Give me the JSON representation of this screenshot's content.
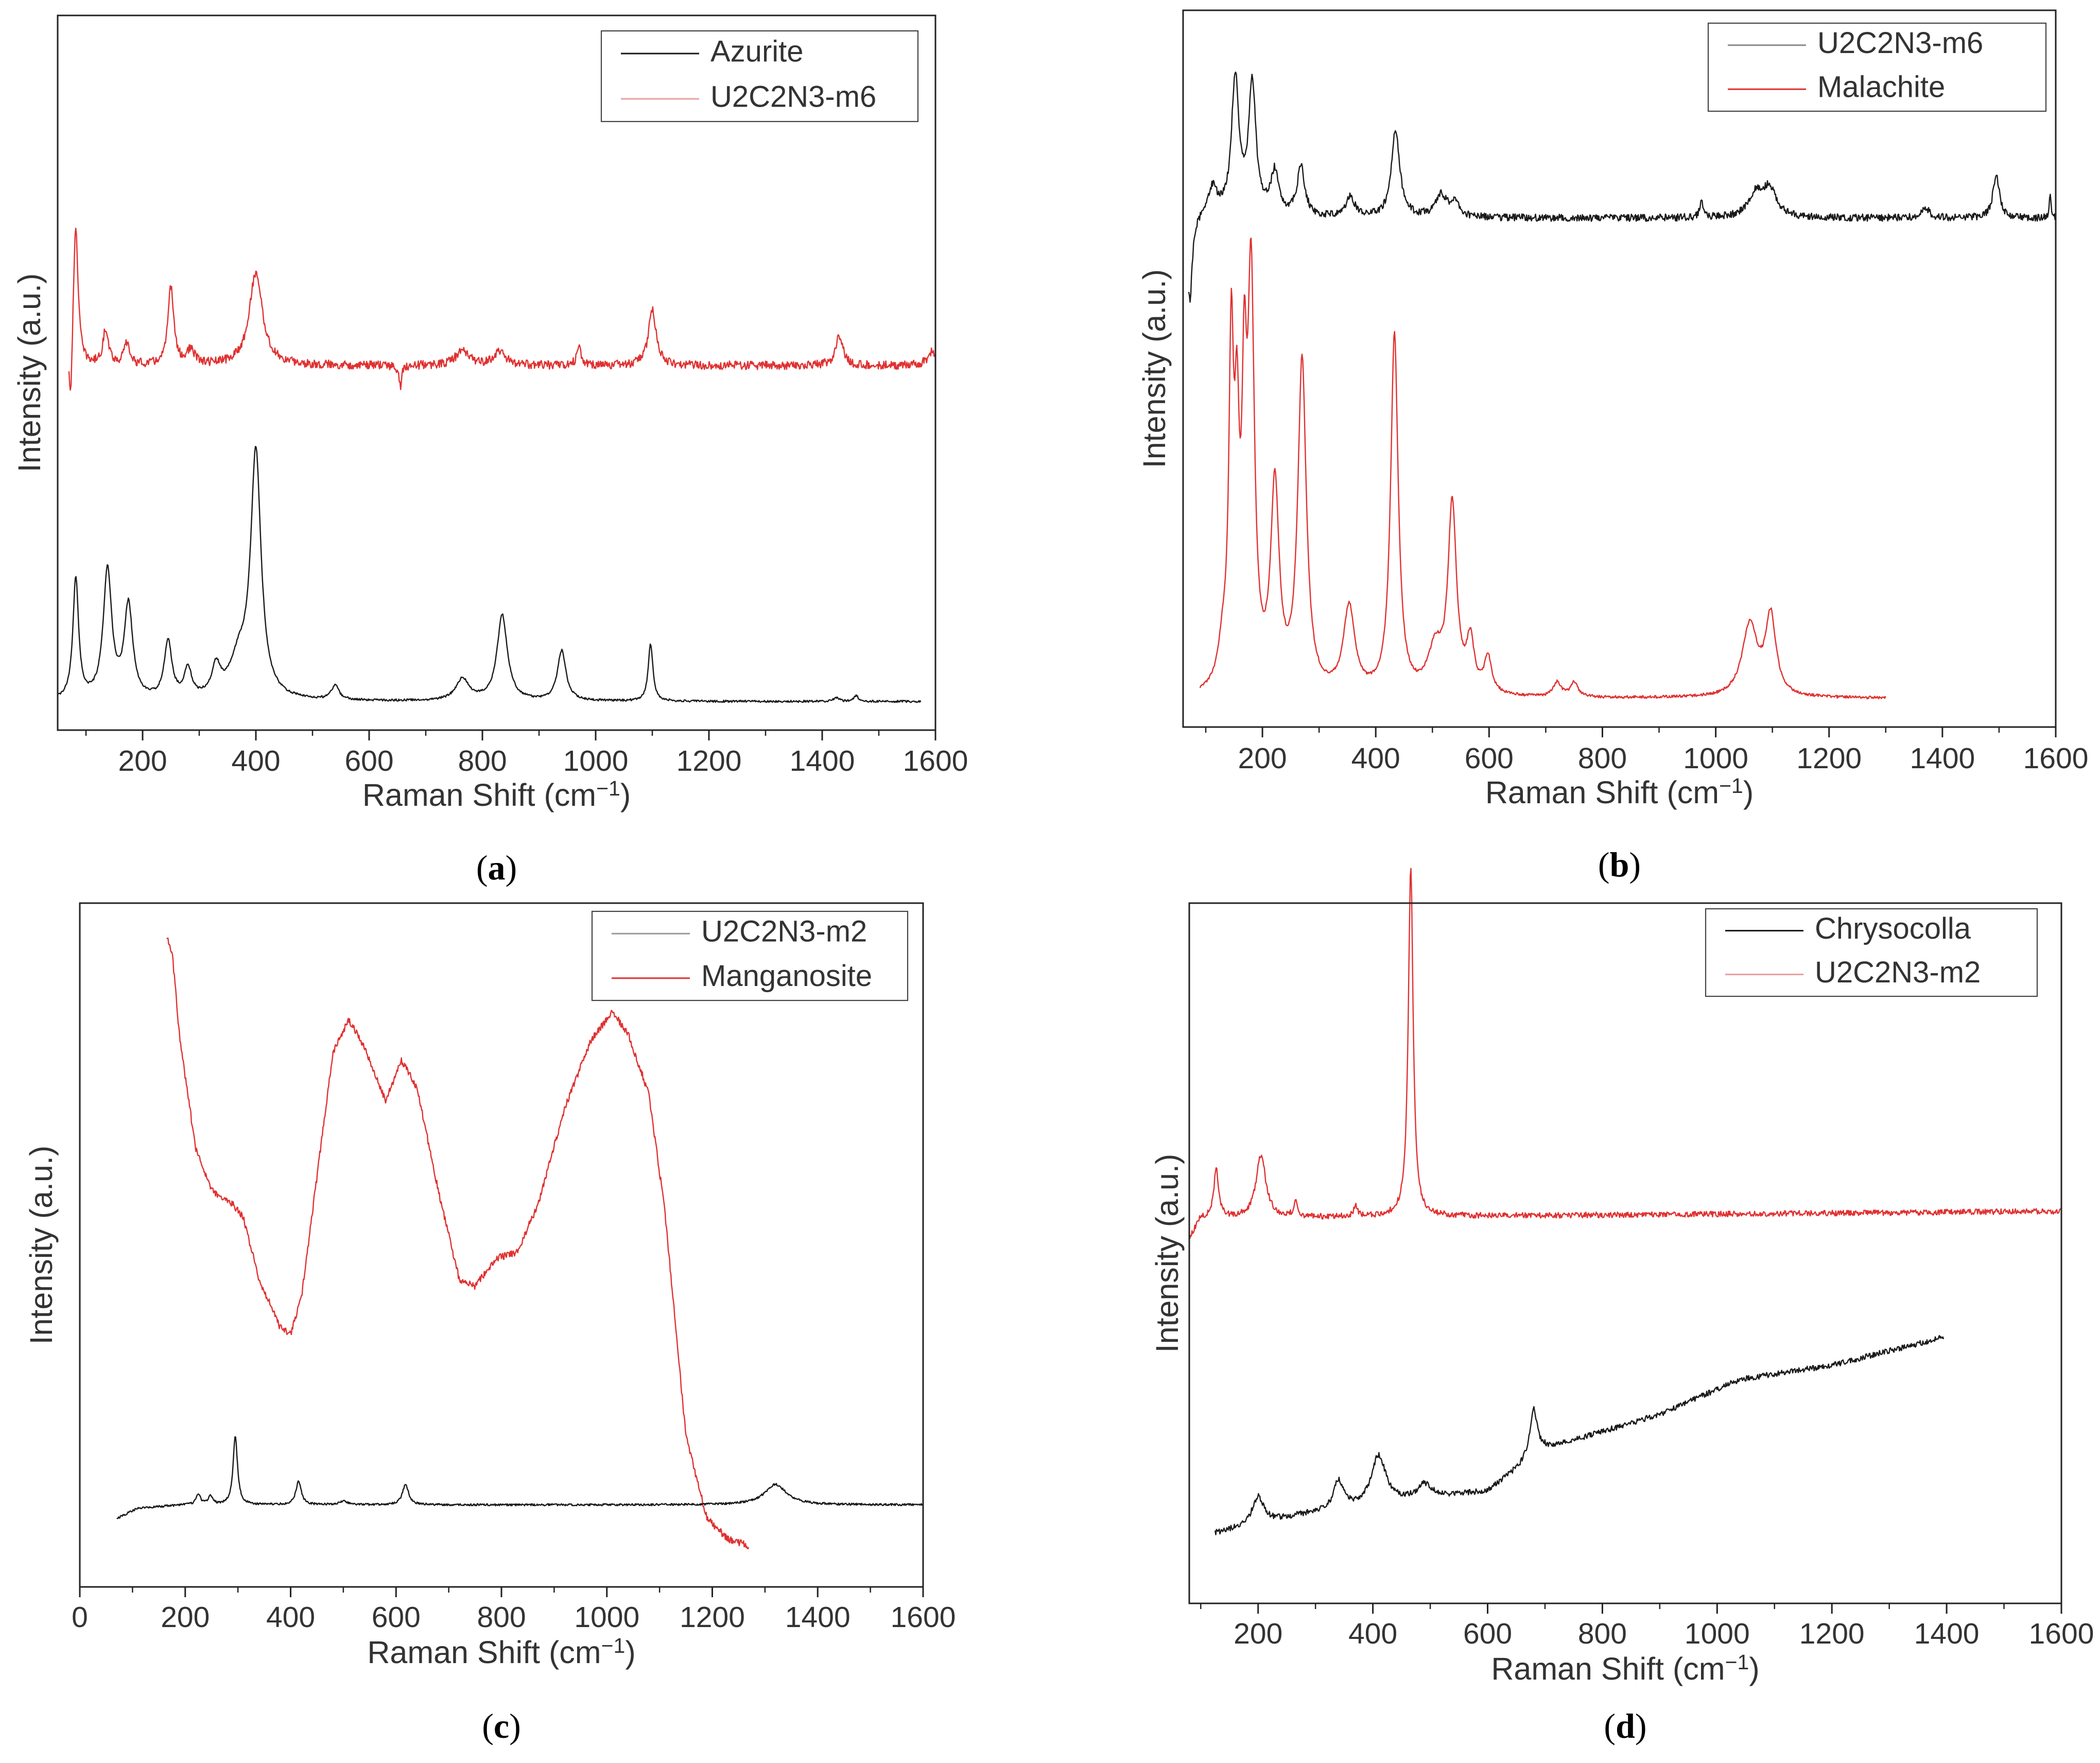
{
  "figure": {
    "panels": [
      "a",
      "b",
      "c",
      "d"
    ]
  },
  "colors": {
    "black": "#1a1a1a",
    "red": "#e03131",
    "axis": "#222222"
  },
  "chart_data": [
    {
      "id": "a",
      "type": "line",
      "caption_open": "(",
      "caption_letter": "a",
      "caption_close": ")",
      "xlabel_main": "Raman Shift (cm",
      "xlabel_sup": "−1",
      "xlabel_close": ")",
      "ylabel": "Intensity (a.u.)",
      "xlim": [
        50,
        1600
      ],
      "ylim": [
        0,
        1
      ],
      "xticks": [
        200,
        400,
        600,
        800,
        1000,
        1200,
        1400,
        1600
      ],
      "legend_position": "top-right",
      "legend": [
        {
          "label": "Azurite",
          "color": "#1a1a1a"
        },
        {
          "label": "U2C2N3-m6",
          "color": "#e8a0a0"
        }
      ],
      "series": [
        {
          "name": "U2C2N3-m6",
          "color": "#e03131",
          "xmin": 70,
          "xmax": 1600,
          "base": 0.51,
          "noise": 0.006,
          "peaks": [
            [
              82,
              0.2,
              5
            ],
            [
              135,
              0.05,
              6
            ],
            [
              172,
              0.03,
              6
            ],
            [
              250,
              0.11,
              6
            ],
            [
              285,
              0.02,
              8
            ],
            [
              400,
              0.13,
              14
            ],
            [
              765,
              0.02,
              15
            ],
            [
              830,
              0.02,
              12
            ],
            [
              970,
              0.03,
              4
            ],
            [
              1100,
              0.08,
              8
            ],
            [
              1430,
              0.04,
              8
            ],
            [
              1595,
              0.02,
              10
            ]
          ],
          "drops": [
            [
              73,
              -0.08,
              3
            ],
            [
              655,
              -0.03,
              3
            ]
          ]
        },
        {
          "name": "Azurite",
          "color": "#1a1a1a",
          "xmin": 50,
          "xmax": 1575,
          "base": 0.04,
          "noise": 0.0015,
          "peaks": [
            [
              82,
              0.17,
              6
            ],
            [
              138,
              0.18,
              9
            ],
            [
              175,
              0.13,
              9
            ],
            [
              245,
              0.08,
              8
            ],
            [
              280,
              0.04,
              8
            ],
            [
              330,
              0.04,
              9
            ],
            [
              400,
              0.34,
              11
            ],
            [
              370,
              0.05,
              20
            ],
            [
              540,
              0.02,
              8
            ],
            [
              765,
              0.03,
              14
            ],
            [
              835,
              0.12,
              11
            ],
            [
              940,
              0.07,
              9
            ],
            [
              1097,
              0.08,
              5
            ],
            [
              1425,
              0.005,
              6
            ],
            [
              1460,
              0.008,
              5
            ]
          ],
          "drops": []
        }
      ]
    },
    {
      "id": "b",
      "type": "line",
      "caption_open": "(",
      "caption_letter": "b",
      "caption_close": ")",
      "xlabel_main": "Raman Shift (cm",
      "xlabel_sup": "−1",
      "xlabel_close": ")",
      "ylabel": "Intensity (a.u.)",
      "xlim": [
        60,
        1600
      ],
      "ylim": [
        0,
        1
      ],
      "xticks": [
        200,
        400,
        600,
        800,
        1000,
        1200,
        1400,
        1600
      ],
      "legend_position": "top-right",
      "legend": [
        {
          "label": "U2C2N3-m6",
          "color": "#8a8a8a"
        },
        {
          "label": "Malachite",
          "color": "#e03131"
        }
      ],
      "series": [
        {
          "name": "U2C2N3-m6",
          "color": "#1a1a1a",
          "xmin": 70,
          "xmax": 1600,
          "base": 0.71,
          "noise": 0.005,
          "peaks": [
            [
              112,
              0.04,
              10
            ],
            [
              152,
              0.19,
              8
            ],
            [
              182,
              0.18,
              8
            ],
            [
              222,
              0.06,
              9
            ],
            [
              268,
              0.07,
              8
            ],
            [
              355,
              0.03,
              9
            ],
            [
              435,
              0.12,
              9
            ],
            [
              515,
              0.03,
              12
            ],
            [
              540,
              0.02,
              10
            ],
            [
              975,
              0.02,
              4
            ],
            [
              1070,
              0.03,
              15
            ],
            [
              1095,
              0.04,
              15
            ],
            [
              1370,
              0.015,
              8
            ],
            [
              1495,
              0.06,
              7
            ],
            [
              1590,
              0.03,
              2
            ]
          ],
          "drops": [
            [
              72,
              -0.12,
              5
            ]
          ]
        },
        {
          "name": "Malachite",
          "color": "#e03131",
          "xmin": 90,
          "xmax": 1300,
          "base": 0.04,
          "noise": 0.002,
          "peaks": [
            [
              130,
              0.05,
              10
            ],
            [
              145,
              0.45,
              5
            ],
            [
              155,
              0.3,
              5
            ],
            [
              168,
              0.35,
              5
            ],
            [
              180,
              0.55,
              7
            ],
            [
              222,
              0.28,
              9
            ],
            [
              270,
              0.46,
              9
            ],
            [
              353,
              0.12,
              12
            ],
            [
              433,
              0.5,
              8
            ],
            [
              505,
              0.06,
              15
            ],
            [
              535,
              0.26,
              9
            ],
            [
              567,
              0.07,
              8
            ],
            [
              598,
              0.05,
              8
            ],
            [
              720,
              0.02,
              8
            ],
            [
              750,
              0.02,
              8
            ],
            [
              1060,
              0.1,
              16
            ],
            [
              1097,
              0.11,
              11
            ]
          ],
          "drops": []
        }
      ]
    },
    {
      "id": "c",
      "type": "line",
      "caption_open": "(",
      "caption_letter": "c",
      "caption_close": ")",
      "xlabel_main": "Raman Shift (cm",
      "xlabel_sup": "−1",
      "xlabel_close": ")",
      "ylabel": "Intensity (a.u.)",
      "xlim": [
        0,
        1600
      ],
      "ylim": [
        0,
        1
      ],
      "xticks": [
        0,
        200,
        400,
        600,
        800,
        1000,
        1200,
        1400,
        1600
      ],
      "legend_position": "top-right",
      "legend": [
        {
          "label": "U2C2N3-m2",
          "color": "#9a9a9a"
        },
        {
          "label": "Manganosite",
          "color": "#e03131"
        }
      ],
      "series": [
        {
          "name": "Manganosite",
          "color": "#e03131",
          "xmin": 165,
          "xmax": 1270,
          "base": 0.06,
          "noise": 0.005,
          "knots": [
            [
              165,
              0.95
            ],
            [
              175,
              0.93
            ],
            [
              190,
              0.8
            ],
            [
              220,
              0.64
            ],
            [
              250,
              0.58
            ],
            [
              290,
              0.56
            ],
            [
              310,
              0.54
            ],
            [
              340,
              0.45
            ],
            [
              380,
              0.38
            ],
            [
              400,
              0.37
            ],
            [
              420,
              0.42
            ],
            [
              450,
              0.6
            ],
            [
              480,
              0.78
            ],
            [
              510,
              0.83
            ],
            [
              540,
              0.79
            ],
            [
              580,
              0.71
            ],
            [
              610,
              0.77
            ],
            [
              640,
              0.73
            ],
            [
              680,
              0.58
            ],
            [
              720,
              0.45
            ],
            [
              750,
              0.44
            ],
            [
              790,
              0.48
            ],
            [
              830,
              0.49
            ],
            [
              870,
              0.56
            ],
            [
              920,
              0.7
            ],
            [
              970,
              0.8
            ],
            [
              1010,
              0.84
            ],
            [
              1040,
              0.81
            ],
            [
              1080,
              0.72
            ],
            [
              1110,
              0.55
            ],
            [
              1150,
              0.22
            ],
            [
              1190,
              0.1
            ],
            [
              1230,
              0.07
            ],
            [
              1270,
              0.06
            ]
          ]
        },
        {
          "name": "U2C2N3-m2",
          "color": "#1a1a1a",
          "xmin": 70,
          "xmax": 1600,
          "base": 0.12,
          "noise": 0.0015,
          "knots": [
            [
              70,
              0.1
            ],
            [
              110,
              0.115
            ],
            [
              200,
              0.12
            ],
            [
              1600,
              0.12
            ]
          ],
          "peaks": [
            [
              225,
              0.015,
              5
            ],
            [
              248,
              0.012,
              5
            ],
            [
              295,
              0.1,
              5
            ],
            [
              415,
              0.035,
              6
            ],
            [
              500,
              0.005,
              10
            ],
            [
              618,
              0.03,
              7
            ],
            [
              1320,
              0.03,
              25
            ]
          ]
        }
      ]
    },
    {
      "id": "d",
      "type": "line",
      "caption_open": "(",
      "caption_letter": "d",
      "caption_close": ")",
      "xlabel_main": "Raman Shift (cm",
      "xlabel_sup": "−1",
      "xlabel_close": ")",
      "ylabel": "Intensity (a.u.)",
      "xlim": [
        80,
        1600
      ],
      "ylim": [
        0,
        1
      ],
      "xticks": [
        200,
        400,
        600,
        800,
        1000,
        1200,
        1400,
        1600
      ],
      "legend_position": "top-right",
      "legend": [
        {
          "label": "Chrysocolla",
          "color": "#1a1a1a"
        },
        {
          "label": "U2C2N3-m2",
          "color": "#e8a0a0"
        }
      ],
      "series": [
        {
          "name": "U2C2N3-m2",
          "color": "#e03131",
          "xmin": 80,
          "xmax": 1600,
          "base": 0.55,
          "noise": 0.004,
          "knots": [
            [
              80,
              0.52
            ],
            [
              100,
              0.55
            ],
            [
              1600,
              0.56
            ]
          ],
          "peaks": [
            [
              127,
              0.07,
              5
            ],
            [
              205,
              0.09,
              10
            ],
            [
              265,
              0.02,
              4
            ],
            [
              370,
              0.015,
              4
            ],
            [
              466,
              0.5,
              5
            ]
          ]
        },
        {
          "name": "Chrysocolla",
          "color": "#1a1a1a",
          "xmin": 125,
          "xmax": 1395,
          "base": 0.1,
          "noise": 0.004,
          "knots": [
            [
              125,
              0.1
            ],
            [
              300,
              0.13
            ],
            [
              500,
              0.15
            ],
            [
              600,
              0.16
            ],
            [
              700,
              0.22
            ],
            [
              900,
              0.27
            ],
            [
              1040,
              0.32
            ],
            [
              1200,
              0.34
            ],
            [
              1395,
              0.38
            ]
          ],
          "peaks": [
            [
              200,
              0.04,
              12
            ],
            [
              340,
              0.04,
              10
            ],
            [
              410,
              0.07,
              15
            ],
            [
              490,
              0.02,
              15
            ],
            [
              680,
              0.07,
              8
            ]
          ]
        }
      ]
    }
  ]
}
